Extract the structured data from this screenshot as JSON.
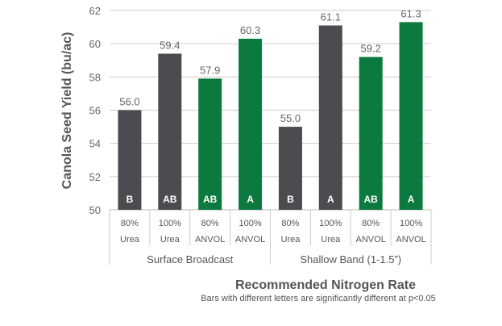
{
  "chart_data": {
    "type": "bar",
    "title": "",
    "xlabel": "Recommended Nitrogen Rate",
    "ylabel": "Canola Seed Yield (bu/ac)",
    "note": "Bars with different letters are significantly different at p<0.05",
    "ylim": [
      50,
      62
    ],
    "yticks": [
      "50",
      "52",
      "54",
      "56",
      "58",
      "60",
      "62"
    ],
    "grid": true,
    "colors": {
      "urea": "#4b4b50",
      "anvol": "#0c7a3f"
    },
    "groups": [
      "Surface Broadcast",
      "Shallow Band (1-1.5”)"
    ],
    "bars": [
      {
        "rate": "80%",
        "product": "Urea",
        "group": 0,
        "value": 56.0,
        "label": "56.0",
        "letter": "B",
        "color": "urea"
      },
      {
        "rate": "100%",
        "product": "Urea",
        "group": 0,
        "value": 59.4,
        "label": "59.4",
        "letter": "AB",
        "color": "urea"
      },
      {
        "rate": "80%",
        "product": "ANVOL",
        "group": 0,
        "value": 57.9,
        "label": "57.9",
        "letter": "AB",
        "color": "anvol"
      },
      {
        "rate": "100%",
        "product": "ANVOL",
        "group": 0,
        "value": 60.3,
        "label": "60.3",
        "letter": "A",
        "color": "anvol"
      },
      {
        "rate": "80%",
        "product": "Urea",
        "group": 1,
        "value": 55.0,
        "label": "55.0",
        "letter": "B",
        "color": "urea"
      },
      {
        "rate": "100%",
        "product": "Urea",
        "group": 1,
        "value": 61.1,
        "label": "61.1",
        "letter": "A",
        "color": "urea"
      },
      {
        "rate": "80%",
        "product": "ANVOL",
        "group": 1,
        "value": 59.2,
        "label": "59.2",
        "letter": "AB",
        "color": "anvol"
      },
      {
        "rate": "100%",
        "product": "ANVOL",
        "group": 1,
        "value": 61.3,
        "label": "61.3",
        "letter": "A",
        "color": "anvol"
      }
    ]
  }
}
